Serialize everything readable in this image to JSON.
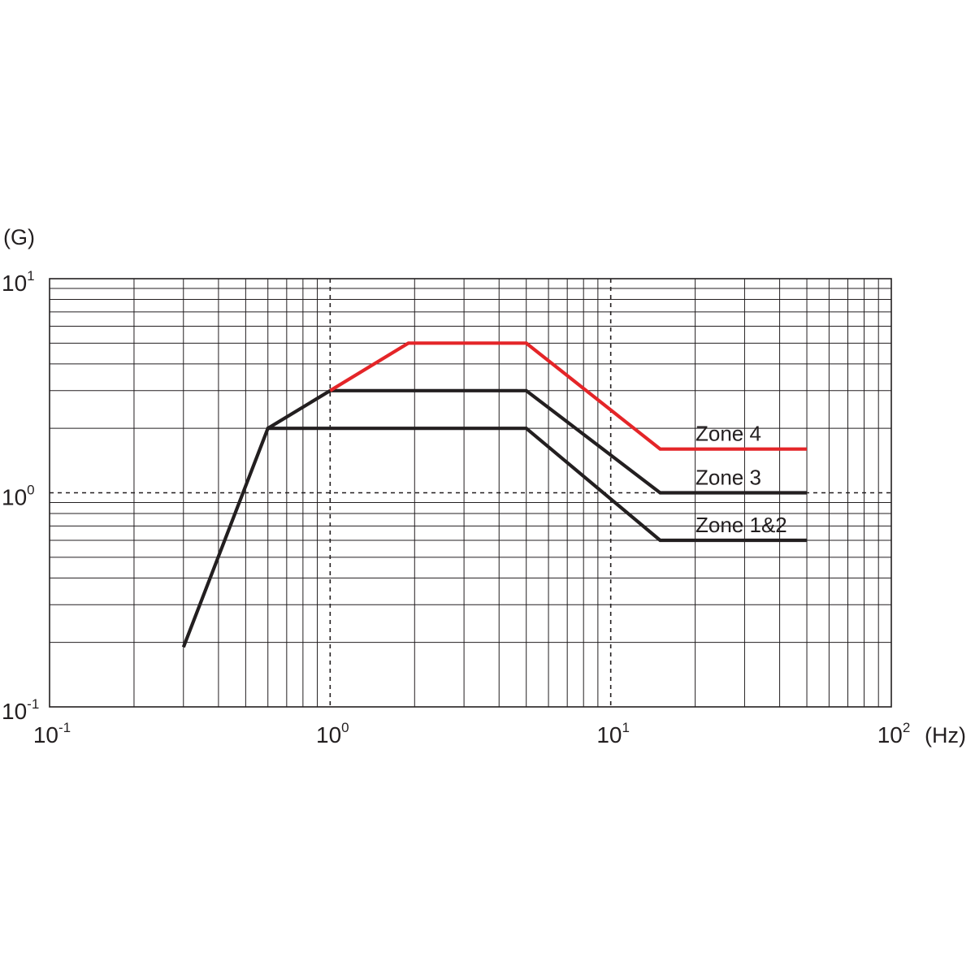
{
  "chart_data": {
    "type": "line",
    "title": "",
    "xlabel": "(Hz)",
    "ylabel": "(G)",
    "xscale": "log",
    "yscale": "log",
    "xlim": [
      0.1,
      100
    ],
    "ylim": [
      0.1,
      10
    ],
    "grid": true,
    "reference_lines": {
      "x": [
        1,
        10
      ],
      "y": [
        1
      ],
      "style": "dashed"
    },
    "x_ticks": [
      {
        "base": "10",
        "exp": "-1"
      },
      {
        "base": "10",
        "exp": "0"
      },
      {
        "base": "10",
        "exp": "1"
      },
      {
        "base": "10",
        "exp": "2"
      }
    ],
    "y_ticks": [
      {
        "base": "10",
        "exp": "1"
      },
      {
        "base": "10",
        "exp": "0"
      },
      {
        "base": "10",
        "exp": "-1"
      }
    ],
    "series": [
      {
        "name": "Zone 1&2",
        "color": "#231f20",
        "x": [
          0.3,
          0.6,
          5,
          15,
          50
        ],
        "y": [
          0.19,
          2.0,
          2.0,
          0.6,
          0.6
        ]
      },
      {
        "name": "Zone 3",
        "color": "#231f20",
        "x": [
          0.6,
          1,
          5,
          15,
          50
        ],
        "y": [
          2.0,
          3.0,
          3.0,
          1.0,
          1.0
        ]
      },
      {
        "name": "Zone 4",
        "color": "#e42528",
        "x": [
          1,
          1.9,
          5,
          15,
          50
        ],
        "y": [
          3.0,
          5.0,
          5.0,
          1.6,
          1.6
        ]
      }
    ]
  }
}
